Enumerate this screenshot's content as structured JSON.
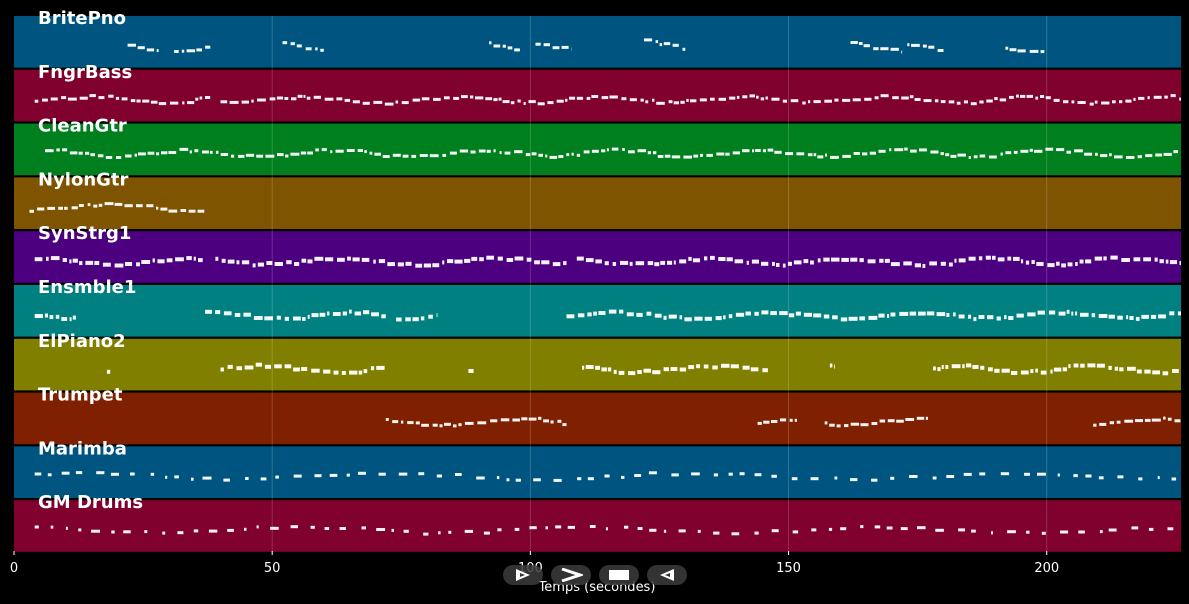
{
  "player": {
    "buttons": [
      {
        "id": "play-forward",
        "icon": "play-triangle-icon"
      },
      {
        "id": "fast-forward",
        "icon": "chevron-right-icon"
      },
      {
        "id": "stop",
        "icon": "stop-square-icon"
      },
      {
        "id": "play-reverse",
        "icon": "reverse-triangle-icon"
      }
    ]
  },
  "chart_data": {
    "type": "piano-roll",
    "xlabel": "Temps (secondes)",
    "xlim": [
      0,
      226
    ],
    "xticks": [
      0,
      50,
      100,
      150,
      200
    ],
    "grid": true,
    "tracks": [
      {
        "name": "BritePno",
        "color": "#005580",
        "segments": [
          [
            22,
            28
          ],
          [
            31,
            38
          ],
          [
            52,
            60
          ],
          [
            92,
            98
          ],
          [
            101,
            108
          ],
          [
            122,
            130
          ],
          [
            162,
            172
          ],
          [
            173,
            180
          ],
          [
            192,
            200
          ]
        ]
      },
      {
        "name": "FngrBass",
        "color": "#80002e",
        "segments": [
          [
            4,
            38
          ],
          [
            40,
            226
          ]
        ]
      },
      {
        "name": "CleanGtr",
        "color": "#007f1e",
        "segments": [
          [
            6,
            226
          ]
        ]
      },
      {
        "name": "NylonGtr",
        "color": "#7f5400",
        "segments": [
          [
            3,
            37
          ]
        ]
      },
      {
        "name": "SynStrg1",
        "color": "#4c0080",
        "segments": [
          [
            4,
            37
          ],
          [
            39,
            107
          ],
          [
            109,
            226
          ]
        ]
      },
      {
        "name": "Ensmble1",
        "color": "#008080",
        "segments": [
          [
            4,
            12
          ],
          [
            37,
            72
          ],
          [
            74,
            82
          ],
          [
            107,
            226
          ]
        ]
      },
      {
        "name": "ElPiano2",
        "color": "#807f00",
        "segments": [
          [
            18,
            19
          ],
          [
            40,
            72
          ],
          [
            88,
            89
          ],
          [
            110,
            146
          ],
          [
            158,
            159
          ],
          [
            178,
            226
          ]
        ]
      },
      {
        "name": "Trumpet",
        "color": "#7f2000",
        "segments": [
          [
            72,
            107
          ],
          [
            144,
            152
          ],
          [
            157,
            177
          ],
          [
            209,
            226
          ]
        ]
      },
      {
        "name": "Marimba",
        "color": "#005580",
        "segments": [
          [
            4,
            226
          ]
        ]
      },
      {
        "name": "GM Drums",
        "color": "#80002e",
        "segments": [
          [
            4,
            226
          ]
        ]
      }
    ]
  }
}
